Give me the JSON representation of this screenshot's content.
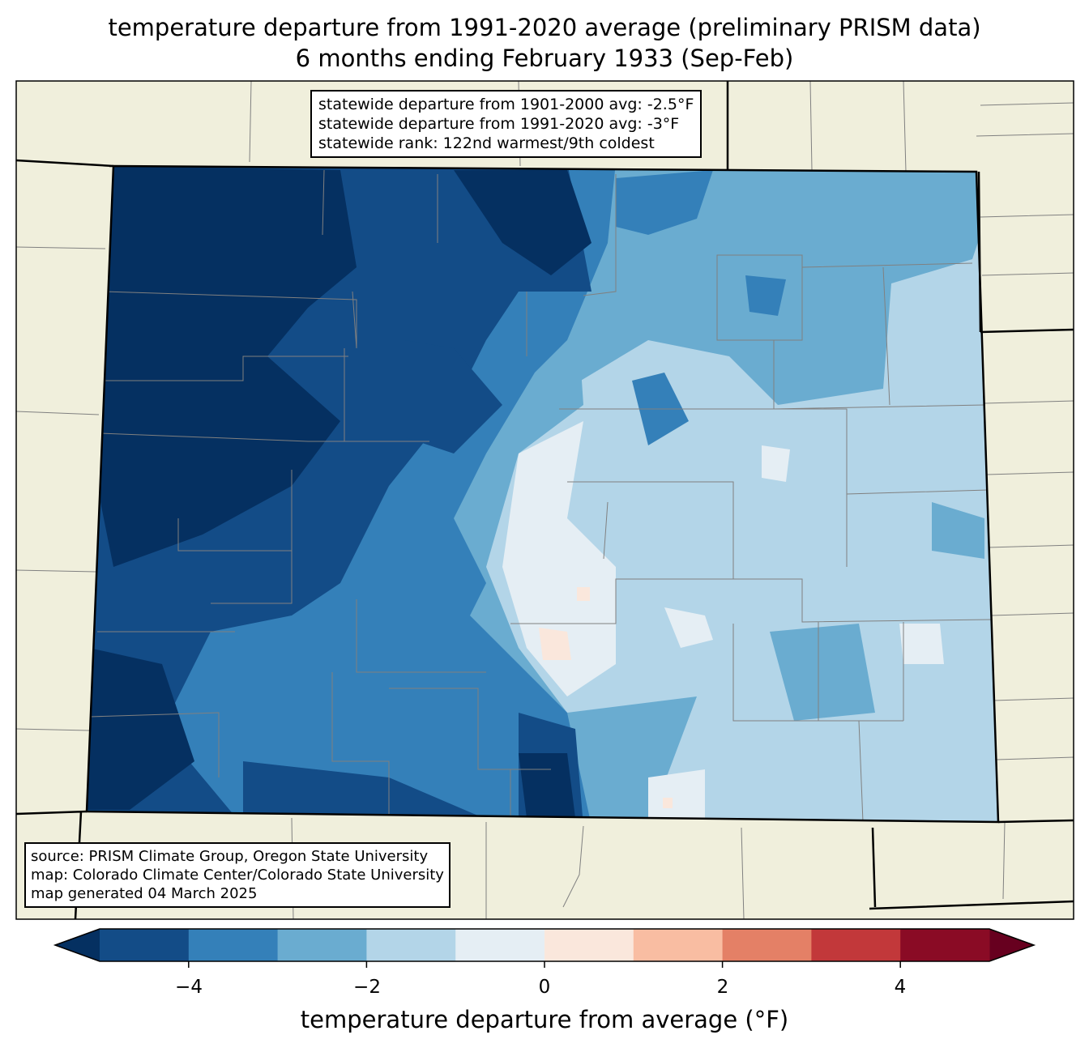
{
  "title": {
    "line1": "temperature departure from 1991-2020 average (preliminary PRISM data)",
    "line2": "6 months ending February 1933 (Sep-Feb)"
  },
  "stats": {
    "line1": "statewide departure from 1901-2000 avg: -2.5°F",
    "line2": "statewide departure from 1991-2020 avg: -3°F",
    "line3": "statewide rank: 122nd warmest/9th coldest"
  },
  "source": {
    "line1": "source: PRISM Climate Group, Oregon State University",
    "line2": "map: Colorado Climate Center/Colorado State University",
    "line3": "map generated 04 March 2025"
  },
  "colorbar": {
    "label": "temperature departure from average (°F)",
    "ticks": [
      "−4",
      "−2",
      "0",
      "2",
      "4"
    ],
    "levels": [
      -5,
      -4,
      -3,
      -2,
      -1,
      0,
      1,
      2,
      3,
      4,
      5
    ],
    "colors": [
      "#134c87",
      "#3480b9",
      "#6aacd0",
      "#b3d5e8",
      "#e5eef4",
      "#fae7dc",
      "#f9bda2",
      "#e48066",
      "#c2383a",
      "#8a0b25"
    ],
    "under_color": "#053061",
    "over_color": "#67001f"
  },
  "map_colors": {
    "land": "#f0efdc",
    "county_lines": "#808080"
  }
}
